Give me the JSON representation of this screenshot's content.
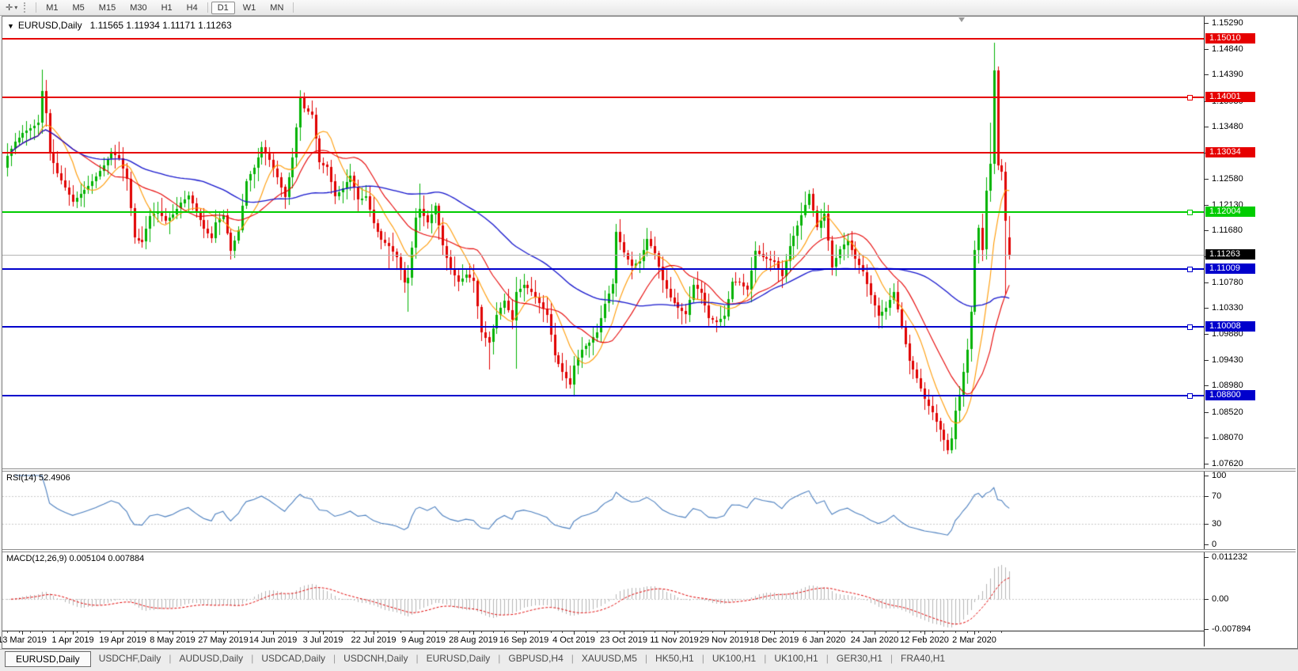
{
  "toolbar": {
    "tool_glyph": "✛",
    "dropdown_glyph": "▾",
    "timeframes": [
      {
        "label": "M1",
        "active": false
      },
      {
        "label": "M5",
        "active": false
      },
      {
        "label": "M15",
        "active": false
      },
      {
        "label": "M30",
        "active": false
      },
      {
        "label": "H1",
        "active": false
      },
      {
        "label": "H4",
        "active": false
      },
      {
        "label": "D1",
        "active": true
      },
      {
        "label": "W1",
        "active": false
      },
      {
        "label": "MN",
        "active": false
      }
    ]
  },
  "chart": {
    "collapse_icon": "▼",
    "symbol_title": "EURUSD,Daily",
    "ohlc_text": "1.11565 1.11934 1.11171 1.11263"
  },
  "chart_data": {
    "type": "candlestick",
    "title": "EURUSD,Daily",
    "candle_count": 261,
    "candle_spacing": 4.87,
    "first_tick_index": 4,
    "first_open": 1.1278,
    "x_dates": [
      "13 Mar 2019",
      "1 Apr 2019",
      "19 Apr 2019",
      "8 May 2019",
      "27 May 2019",
      "14 Jun 2019",
      "3 Jul 2019",
      "22 Jul 2019",
      "9 Aug 2019",
      "28 Aug 2019",
      "16 Sep 2019",
      "4 Oct 2019",
      "23 Oct 2019",
      "11 Nov 2019",
      "29 Nov 2019",
      "18 Dec 2019",
      "6 Jan 2020",
      "24 Jan 2020",
      "12 Feb 2020",
      "2 Mar 2020"
    ],
    "price_axis": {
      "max": 1.154,
      "min": 1.0754,
      "ticks": [
        "1.15290",
        "1.14840",
        "1.14390",
        "1.13930",
        "1.13480",
        "1.13030",
        "1.12580",
        "1.12130",
        "1.11680",
        "1.11230",
        "1.10780",
        "1.10330",
        "1.09880",
        "1.09430",
        "1.08980",
        "1.08520",
        "1.08070",
        "1.07620"
      ]
    },
    "close_waypoints": [
      [
        0,
        1.1298
      ],
      [
        2,
        1.1322
      ],
      [
        4,
        1.1338
      ],
      [
        6,
        1.1346
      ],
      [
        8,
        1.1355
      ],
      [
        9,
        1.141
      ],
      [
        10,
        1.1372
      ],
      [
        11,
        1.1303
      ],
      [
        13,
        1.1268
      ],
      [
        15,
        1.1242
      ],
      [
        17,
        1.1218
      ],
      [
        19,
        1.1232
      ],
      [
        21,
        1.1246
      ],
      [
        23,
        1.1262
      ],
      [
        25,
        1.1281
      ],
      [
        27,
        1.1304
      ],
      [
        29,
        1.1294
      ],
      [
        31,
        1.1258
      ],
      [
        33,
        1.1155
      ],
      [
        35,
        1.1148
      ],
      [
        37,
        1.1193
      ],
      [
        39,
        1.1202
      ],
      [
        41,
        1.1185
      ],
      [
        43,
        1.1196
      ],
      [
        45,
        1.1216
      ],
      [
        47,
        1.1229
      ],
      [
        49,
        1.1201
      ],
      [
        51,
        1.1171
      ],
      [
        53,
        1.1155
      ],
      [
        54,
        1.1182
      ],
      [
        56,
        1.1195
      ],
      [
        58,
        1.1133
      ],
      [
        60,
        1.1169
      ],
      [
        62,
        1.1254
      ],
      [
        64,
        1.1277
      ],
      [
        66,
        1.1313
      ],
      [
        68,
        1.1291
      ],
      [
        70,
        1.1261
      ],
      [
        72,
        1.1226
      ],
      [
        74,
        1.1295
      ],
      [
        76,
        1.14
      ],
      [
        77,
        1.1381
      ],
      [
        79,
        1.1369
      ],
      [
        81,
        1.1286
      ],
      [
        83,
        1.1279
      ],
      [
        85,
        1.1227
      ],
      [
        87,
        1.1241
      ],
      [
        89,
        1.1263
      ],
      [
        91,
        1.1221
      ],
      [
        93,
        1.1227
      ],
      [
        95,
        1.1181
      ],
      [
        97,
        1.1152
      ],
      [
        99,
        1.1141
      ],
      [
        101,
        1.1121
      ],
      [
        103,
        1.1077
      ],
      [
        104,
        1.1086
      ],
      [
        106,
        1.1191
      ],
      [
        107,
        1.1206
      ],
      [
        109,
        1.1182
      ],
      [
        111,
        1.1211
      ],
      [
        113,
        1.1141
      ],
      [
        115,
        1.1101
      ],
      [
        117,
        1.1079
      ],
      [
        119,
        1.1091
      ],
      [
        121,
        1.108
      ],
      [
        123,
        1.0991
      ],
      [
        125,
        1.0973
      ],
      [
        127,
        1.1021
      ],
      [
        129,
        1.1046
      ],
      [
        131,
        1.1012
      ],
      [
        132,
        1.1061
      ],
      [
        134,
        1.1073
      ],
      [
        136,
        1.1061
      ],
      [
        138,
        1.1043
      ],
      [
        140,
        1.1022
      ],
      [
        142,
        1.0951
      ],
      [
        144,
        1.0922
      ],
      [
        146,
        1.09
      ],
      [
        147,
        1.0933
      ],
      [
        149,
        1.0961
      ],
      [
        151,
        1.0973
      ],
      [
        153,
        1.0991
      ],
      [
        155,
        1.1041
      ],
      [
        157,
        1.1075
      ],
      [
        158,
        1.1165
      ],
      [
        160,
        1.1129
      ],
      [
        162,
        1.1106
      ],
      [
        164,
        1.1115
      ],
      [
        166,
        1.1153
      ],
      [
        168,
        1.1128
      ],
      [
        170,
        1.1081
      ],
      [
        172,
        1.1052
      ],
      [
        174,
        1.1034
      ],
      [
        176,
        1.1022
      ],
      [
        178,
        1.1073
      ],
      [
        180,
        1.106
      ],
      [
        182,
        1.1015
      ],
      [
        184,
        1.1009
      ],
      [
        186,
        1.1019
      ],
      [
        188,
        1.1079
      ],
      [
        190,
        1.1078
      ],
      [
        192,
        1.1065
      ],
      [
        194,
        1.1132
      ],
      [
        196,
        1.1122
      ],
      [
        199,
        1.1114
      ],
      [
        201,
        1.1089
      ],
      [
        203,
        1.1141
      ],
      [
        205,
        1.1176
      ],
      [
        207,
        1.1213
      ],
      [
        208,
        1.1232
      ],
      [
        210,
        1.1173
      ],
      [
        212,
        1.1197
      ],
      [
        214,
        1.1104
      ],
      [
        216,
        1.1135
      ],
      [
        218,
        1.1151
      ],
      [
        220,
        1.1119
      ],
      [
        222,
        1.1096
      ],
      [
        224,
        1.1055
      ],
      [
        226,
        1.102
      ],
      [
        228,
        1.1033
      ],
      [
        230,
        1.1061
      ],
      [
        232,
        1.1001
      ],
      [
        234,
        1.0941
      ],
      [
        236,
        1.0911
      ],
      [
        238,
        1.0874
      ],
      [
        240,
        1.0851
      ],
      [
        242,
        1.0821
      ],
      [
        244,
        1.0786
      ],
      [
        245,
        1.0806
      ],
      [
        246,
        1.0855
      ],
      [
        247,
        1.0882
      ],
      [
        249,
        1.0961
      ],
      [
        250,
        1.1026
      ],
      [
        251,
        1.1134
      ],
      [
        252,
        1.1173
      ],
      [
        253,
        1.1135
      ],
      [
        254,
        1.1237
      ],
      [
        255,
        1.1284
      ],
      [
        256,
        1.1446
      ],
      [
        257,
        1.1281
      ],
      [
        258,
        1.127
      ],
      [
        259,
        1.1184
      ],
      [
        260,
        1.11263
      ]
    ],
    "wick_overrides": {
      "9": {
        "high": 1.1448
      },
      "76": {
        "high": 1.1412
      },
      "99": {
        "low": 1.1101
      },
      "104": {
        "low": 1.1027
      },
      "107": {
        "high": 1.125
      },
      "125": {
        "low": 1.0926
      },
      "132": {
        "low": 1.0927,
        "high": 1.1087
      },
      "147": {
        "low": 1.0879
      },
      "158": {
        "high": 1.1179
      },
      "208": {
        "high": 1.1239
      },
      "244": {
        "low": 1.0778
      },
      "255": {
        "high": 1.1355
      },
      "256": {
        "high": 1.1495
      },
      "259": {
        "low": 1.1055
      },
      "260": {
        "open": 1.11565,
        "high": 1.11934,
        "low": 1.11171
      }
    },
    "moving_averages": [
      {
        "name": "ma-fast",
        "period": 9,
        "color": "#FF9900",
        "width": 1.1
      },
      {
        "name": "ma-mid",
        "period": 18,
        "color": "#E60000",
        "width": 1.1
      },
      {
        "name": "ma-slow",
        "period": 52,
        "color": "#1414CC",
        "width": 1.3
      }
    ],
    "hlines": [
      {
        "price": 1.1501,
        "color": "#E60000",
        "handle": false
      },
      {
        "price": 1.14001,
        "color": "#E60000",
        "handle": true
      },
      {
        "price": 1.13034,
        "color": "#E60000",
        "handle": false
      },
      {
        "price": 1.12004,
        "color": "#00CC00",
        "handle": true
      },
      {
        "price": 1.11009,
        "color": "#0000CC",
        "handle": true
      },
      {
        "price": 1.10008,
        "color": "#0000CC",
        "handle": true
      },
      {
        "price": 1.088,
        "color": "#0000CC",
        "handle": true
      }
    ],
    "current": {
      "price": 1.11263,
      "label": "1.11263",
      "line_color": "#B4B4B4",
      "badge_color": "#000000"
    },
    "badges": [
      {
        "label": "1.15010",
        "price": 1.1501,
        "color": "#E60000"
      },
      {
        "label": "1.14001",
        "price": 1.14001,
        "color": "#E60000"
      },
      {
        "label": "1.13034",
        "price": 1.13034,
        "color": "#E60000"
      },
      {
        "label": "1.12004",
        "price": 1.12004,
        "color": "#00CC00"
      },
      {
        "label": "1.11263",
        "price": 1.11263,
        "color": "#000000"
      },
      {
        "label": "1.11009",
        "price": 1.11009,
        "color": "#0000CC"
      },
      {
        "label": "1.10008",
        "price": 1.10008,
        "color": "#0000CC"
      },
      {
        "label": "1.08800",
        "price": 1.088,
        "color": "#0000CC"
      }
    ],
    "rsi": {
      "label": "RSI(14) 52.4906",
      "period": 14,
      "value": 52.4906,
      "levels": [
        70,
        30
      ],
      "axis_ticks": [
        [
          "100",
          100
        ],
        [
          "70",
          70
        ],
        [
          "30",
          30
        ],
        [
          "0",
          0
        ]
      ]
    },
    "macd": {
      "label": "MACD(12,26,9) 0.005104 0.007884",
      "params": "12,26,9",
      "main_value": 0.005104,
      "signal_value": 0.007884,
      "scale_max": 0.01265,
      "scale_min": -0.00832,
      "axis_ticks": [
        [
          "0.011232",
          0.011232
        ],
        [
          "0.00",
          0
        ],
        [
          "-0.007894",
          -0.007894
        ]
      ]
    },
    "colors": {
      "up": "#00B200",
      "down": "#E00000",
      "rsi": "#4A7EBE",
      "macd_hist": "#B4B4B4",
      "macd_signal": "#E00000"
    }
  },
  "tabs": [
    {
      "label": "EURUSD,Daily",
      "active": true
    },
    {
      "label": "USDCHF,Daily",
      "active": false
    },
    {
      "label": "AUDUSD,Daily",
      "active": false
    },
    {
      "label": "USDCAD,Daily",
      "active": false
    },
    {
      "label": "USDCNH,Daily",
      "active": false
    },
    {
      "label": "EURUSD,Daily",
      "active": false
    },
    {
      "label": "GBPUSD,H4",
      "active": false
    },
    {
      "label": "XAUUSD,M5",
      "active": false
    },
    {
      "label": "HK50,H1",
      "active": false
    },
    {
      "label": "UK100,H1",
      "active": false
    },
    {
      "label": "UK100,H1",
      "active": false
    },
    {
      "label": "GER30,H1",
      "active": false
    },
    {
      "label": "FRA40,H1",
      "active": false
    }
  ]
}
